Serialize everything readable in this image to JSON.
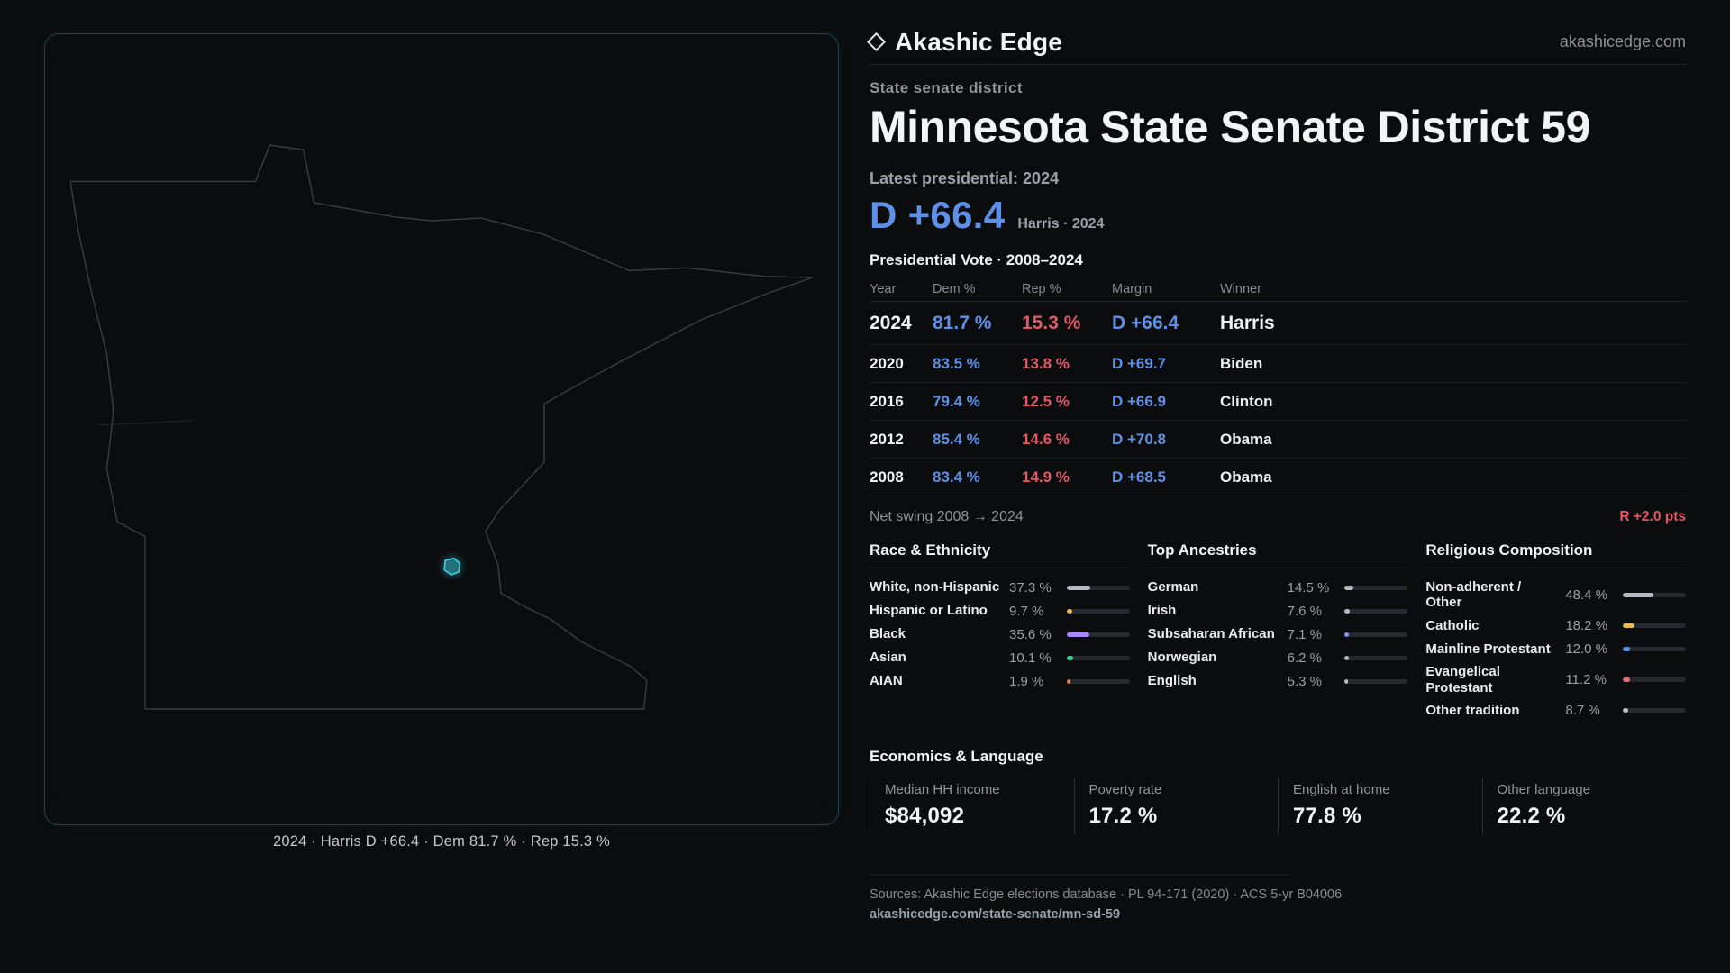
{
  "header": {
    "brand": "Akashic Edge",
    "site": "akashicedge.com",
    "kicker": "State senate district",
    "title": "Minnesota State Senate District 59"
  },
  "map": {
    "caption": "2024 · Harris D +66.4 · Dem 81.7 % · Rep 15.3 %"
  },
  "latest": {
    "label": "Latest presidential: 2024",
    "margin": "D +66.4",
    "sub": "Harris · 2024"
  },
  "vote_table": {
    "title": "Presidential Vote · 2008–2024",
    "columns": [
      "Year",
      "Dem %",
      "Rep %",
      "Margin",
      "Winner"
    ],
    "rows": [
      {
        "year": "2024",
        "dem": "81.7 %",
        "rep": "15.3 %",
        "margin": "D +66.4",
        "winner": "Harris"
      },
      {
        "year": "2020",
        "dem": "83.5 %",
        "rep": "13.8 %",
        "margin": "D +69.7",
        "winner": "Biden"
      },
      {
        "year": "2016",
        "dem": "79.4 %",
        "rep": "12.5 %",
        "margin": "D +66.9",
        "winner": "Clinton"
      },
      {
        "year": "2012",
        "dem": "85.4 %",
        "rep": "14.6 %",
        "margin": "D +70.8",
        "winner": "Obama"
      },
      {
        "year": "2008",
        "dem": "83.4 %",
        "rep": "14.9 %",
        "margin": "D +68.5",
        "winner": "Obama"
      }
    ],
    "net_swing_label": "Net swing 2008 → 2024",
    "net_swing_value": "R +2.0 pts"
  },
  "demographics": {
    "race": {
      "title": "Race & Ethnicity",
      "rows": [
        {
          "label": "White, non-Hispanic",
          "value": "37.3 %",
          "pct": 37.3,
          "color": "#b6bcc4"
        },
        {
          "label": "Hispanic or Latino",
          "value": "9.7 %",
          "pct": 9.7,
          "color": "#e2bd54"
        },
        {
          "label": "Black",
          "value": "35.6 %",
          "pct": 35.6,
          "color": "#a78bfa"
        },
        {
          "label": "Asian",
          "value": "10.1 %",
          "pct": 10.1,
          "color": "#3bd18c"
        },
        {
          "label": "AIAN",
          "value": "1.9 %",
          "pct": 1.9,
          "color": "#dd7a4e"
        }
      ]
    },
    "ancestries": {
      "title": "Top Ancestries",
      "rows": [
        {
          "label": "German",
          "value": "14.5 %",
          "pct": 14.5,
          "color": "#b6bcc4"
        },
        {
          "label": "Irish",
          "value": "7.6 %",
          "pct": 7.6,
          "color": "#b6bcc4"
        },
        {
          "label": "Subsaharan African",
          "value": "7.1 %",
          "pct": 7.1,
          "color": "#8d93ee"
        },
        {
          "label": "Norwegian",
          "value": "6.2 %",
          "pct": 6.2,
          "color": "#b6bcc4"
        },
        {
          "label": "English",
          "value": "5.3 %",
          "pct": 5.3,
          "color": "#b6bcc4"
        }
      ]
    },
    "religion": {
      "title": "Religious Composition",
      "rows": [
        {
          "label": "Non-adherent / Other",
          "value": "48.4 %",
          "pct": 48.4,
          "color": "#b6bcc4"
        },
        {
          "label": "Catholic",
          "value": "18.2 %",
          "pct": 18.2,
          "color": "#e2bd54"
        },
        {
          "label": "Mainline Protestant",
          "value": "12.0 %",
          "pct": 12.0,
          "color": "#5f90e8"
        },
        {
          "label": "Evangelical Protestant",
          "value": "11.2 %",
          "pct": 11.2,
          "color": "#e0707c"
        },
        {
          "label": "Other tradition",
          "value": "8.7 %",
          "pct": 8.7,
          "color": "#b6bcc4"
        }
      ]
    }
  },
  "economics": {
    "title": "Economics & Language",
    "stats": [
      {
        "label": "Median HH income",
        "value": "$84,092"
      },
      {
        "label": "Poverty rate",
        "value": "17.2 %"
      },
      {
        "label": "English at home",
        "value": "77.8 %"
      },
      {
        "label": "Other language",
        "value": "22.2 %"
      }
    ]
  },
  "footer": {
    "sources": "Sources: Akashic Edge elections database · PL 94-171 (2020) · ACS 5-yr B04006",
    "permalink": "akashicedge.com/state-senate/mn-sd-59"
  },
  "colors": {
    "dem": "#5e90e6",
    "rep": "#e05a64",
    "accent": "#3ecde0"
  }
}
